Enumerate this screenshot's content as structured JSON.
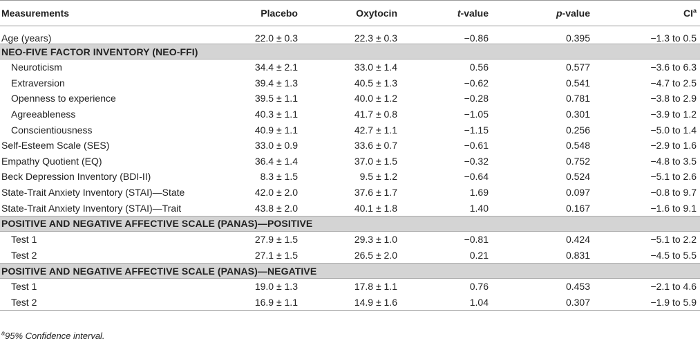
{
  "header": {
    "measurements": "Measurements",
    "placebo": "Placebo",
    "oxytocin": "Oxytocin",
    "t_prefix": "t",
    "t_suffix": "-value",
    "p_prefix": "p",
    "p_suffix": "-value",
    "ci": "CI",
    "ci_sup": "a"
  },
  "rows": [
    {
      "type": "data",
      "label": "Age (years)",
      "placebo": "22.0 ± 0.3",
      "oxytocin": "22.3 ± 0.3",
      "t": "−0.86",
      "p": "0.395",
      "ci": "−1.3 to 0.5"
    },
    {
      "type": "section",
      "label": "NEO-FIVE FACTOR INVENTORY (NEO-FFI)"
    },
    {
      "type": "data",
      "indent": true,
      "label": "Neuroticism",
      "placebo": "34.4 ± 2.1",
      "oxytocin": "33.0 ± 1.4",
      "t": "0.56",
      "p": "0.577",
      "ci": "−3.6 to 6.3"
    },
    {
      "type": "data",
      "indent": true,
      "label": "Extraversion",
      "placebo": "39.4 ± 1.3",
      "oxytocin": "40.5 ± 1.3",
      "t": "−0.62",
      "p": "0.541",
      "ci": "−4.7 to 2.5"
    },
    {
      "type": "data",
      "indent": true,
      "label": "Openness to experience",
      "placebo": "39.5 ± 1.1",
      "oxytocin": "40.0 ± 1.2",
      "t": "−0.28",
      "p": "0.781",
      "ci": "−3.8 to 2.9"
    },
    {
      "type": "data",
      "indent": true,
      "label": "Agreeableness",
      "placebo": "40.3 ± 1.1",
      "oxytocin": "41.7 ± 0.8",
      "t": "−1.05",
      "p": "0.301",
      "ci": "−3.9 to 1.2"
    },
    {
      "type": "data",
      "indent": true,
      "label": "Conscientiousness",
      "placebo": "40.9 ± 1.1",
      "oxytocin": "42.7 ± 1.1",
      "t": "−1.15",
      "p": "0.256",
      "ci": "−5.0 to 1.4"
    },
    {
      "type": "data",
      "label": "Self-Esteem Scale (SES)",
      "placebo": "33.0 ± 0.9",
      "oxytocin": "33.6 ± 0.7",
      "t": "−0.61",
      "p": "0.548",
      "ci": "−2.9 to 1.6"
    },
    {
      "type": "data",
      "label": "Empathy Quotient (EQ)",
      "placebo": "36.4 ± 1.4",
      "oxytocin": "37.0 ± 1.5",
      "t": "−0.32",
      "p": "0.752",
      "ci": "−4.8 to 3.5"
    },
    {
      "type": "data",
      "label": "Beck Depression Inventory (BDI-II)",
      "placebo": "8.3 ± 1.5",
      "oxytocin": "9.5 ± 1.2",
      "t": "−0.64",
      "p": "0.524",
      "ci": "−5.1 to 2.6"
    },
    {
      "type": "data",
      "label": "State-Trait Anxiety Inventory (STAI)—State",
      "placebo": "42.0 ± 2.0",
      "oxytocin": "37.6 ± 1.7",
      "t": "1.69",
      "p": "0.097",
      "ci": "−0.8 to 9.7"
    },
    {
      "type": "data",
      "label": "State-Trait Anxiety Inventory (STAI)—Trait",
      "placebo": "43.8 ± 2.0",
      "oxytocin": "40.1 ± 1.8",
      "t": "1.40",
      "p": "0.167",
      "ci": "−1.6 to 9.1"
    },
    {
      "type": "section",
      "label": "POSITIVE AND NEGATIVE AFFECTIVE SCALE (PANAS)—POSITIVE"
    },
    {
      "type": "data",
      "indent": true,
      "label": "Test 1",
      "placebo": "27.9 ± 1.5",
      "oxytocin": "29.3 ± 1.0",
      "t": "−0.81",
      "p": "0.424",
      "ci": "−5.1 to 2.2"
    },
    {
      "type": "data",
      "indent": true,
      "label": "Test 2",
      "placebo": "27.1 ± 1.5",
      "oxytocin": "26.5 ± 2.0",
      "t": "0.21",
      "p": "0.831",
      "ci": "−4.5 to 5.5"
    },
    {
      "type": "section",
      "label": "POSITIVE AND NEGATIVE AFFECTIVE SCALE (PANAS)—NEGATIVE"
    },
    {
      "type": "data",
      "indent": true,
      "label": "Test 1",
      "placebo": "19.0 ± 1.3",
      "oxytocin": "17.8 ± 1.1",
      "t": "0.76",
      "p": "0.453",
      "ci": "−2.1 to 4.6"
    },
    {
      "type": "data",
      "indent": true,
      "label": "Test 2",
      "placebo": "16.9 ± 1.1",
      "oxytocin": "14.9 ± 1.6",
      "t": "1.04",
      "p": "0.307",
      "ci": "−1.9 to 5.9"
    }
  ],
  "footnote": {
    "sup": "a",
    "text": "95% Confidence interval."
  }
}
